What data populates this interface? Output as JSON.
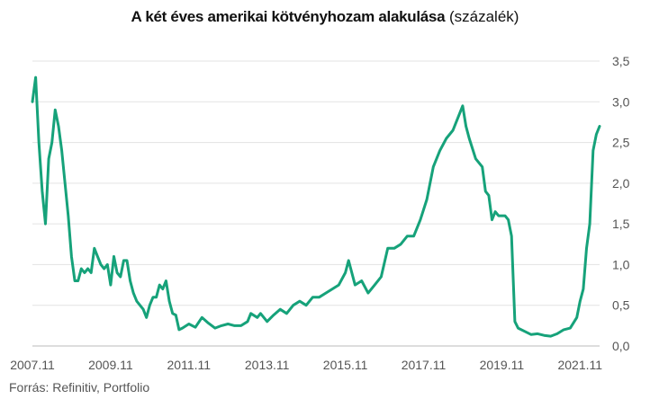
{
  "chart_data": {
    "type": "line",
    "title": "A két éves amerikai kötvényhozam alakulása",
    "unit": "(százalék)",
    "source": "Forrás: Refinitiv, Portfolio",
    "ylim": [
      0,
      3.5
    ],
    "yticks": [
      "0,0",
      "0,5",
      "1,0",
      "1,5",
      "2,0",
      "2,5",
      "3,0",
      "3,5"
    ],
    "xlim": [
      "2007.11",
      "2022.05"
    ],
    "xticks": [
      "2007.11",
      "2009.11",
      "2011.11",
      "2013.11",
      "2015.11",
      "2017.11",
      "2019.11",
      "2021.11"
    ],
    "grid": "horizontal",
    "line_color": "#16a27a",
    "series": [
      {
        "x": [
          "2007.11",
          "2007.12",
          "2008.01",
          "2008.02",
          "2008.03",
          "2008.04",
          "2008.05",
          "2008.06",
          "2008.07",
          "2008.08",
          "2008.09",
          "2008.10",
          "2008.11",
          "2008.12",
          "2009.01",
          "2009.02",
          "2009.03",
          "2009.04",
          "2009.05",
          "2009.06",
          "2009.07",
          "2009.08",
          "2009.09",
          "2009.10",
          "2009.11",
          "2009.12",
          "2010.01",
          "2010.02",
          "2010.03",
          "2010.04",
          "2010.05",
          "2010.06",
          "2010.07",
          "2010.08",
          "2010.09",
          "2010.10",
          "2010.11",
          "2010.12",
          "2011.01",
          "2011.02",
          "2011.03",
          "2011.04",
          "2011.05",
          "2011.06",
          "2011.07",
          "2011.08",
          "2011.09",
          "2011.11",
          "2012.01",
          "2012.03",
          "2012.05",
          "2012.07",
          "2012.09",
          "2012.11",
          "2013.01",
          "2013.03",
          "2013.05",
          "2013.06",
          "2013.08",
          "2013.09",
          "2013.11",
          "2014.01",
          "2014.03",
          "2014.05",
          "2014.07",
          "2014.09",
          "2014.11",
          "2015.01",
          "2015.03",
          "2015.05",
          "2015.07",
          "2015.09",
          "2015.11",
          "2015.12",
          "2016.02",
          "2016.04",
          "2016.06",
          "2016.08",
          "2016.10",
          "2016.12",
          "2017.02",
          "2017.04",
          "2017.06",
          "2017.08",
          "2017.10",
          "2017.12",
          "2018.02",
          "2018.04",
          "2018.06",
          "2018.08",
          "2018.10",
          "2018.11",
          "2018.12",
          "2019.01",
          "2019.03",
          "2019.05",
          "2019.06",
          "2019.07",
          "2019.08",
          "2019.09",
          "2019.10",
          "2019.12",
          "2020.01",
          "2020.02",
          "2020.03",
          "2020.04",
          "2020.06",
          "2020.08",
          "2020.10",
          "2020.12",
          "2021.02",
          "2021.04",
          "2021.06",
          "2021.08",
          "2021.10",
          "2021.11",
          "2021.12",
          "2022.01",
          "2022.02",
          "2022.03",
          "2022.04",
          "2022.05"
        ],
        "values": [
          3.0,
          3.3,
          2.5,
          1.9,
          1.5,
          2.3,
          2.5,
          2.9,
          2.7,
          2.4,
          2.0,
          1.6,
          1.1,
          0.8,
          0.8,
          0.95,
          0.9,
          0.95,
          0.9,
          1.2,
          1.1,
          1.0,
          0.95,
          1.0,
          0.75,
          1.1,
          0.9,
          0.85,
          1.05,
          1.05,
          0.8,
          0.65,
          0.55,
          0.5,
          0.45,
          0.35,
          0.5,
          0.6,
          0.6,
          0.75,
          0.7,
          0.8,
          0.55,
          0.4,
          0.38,
          0.2,
          0.22,
          0.27,
          0.23,
          0.35,
          0.28,
          0.22,
          0.25,
          0.27,
          0.25,
          0.25,
          0.3,
          0.4,
          0.35,
          0.4,
          0.3,
          0.38,
          0.45,
          0.4,
          0.5,
          0.55,
          0.5,
          0.6,
          0.6,
          0.65,
          0.7,
          0.75,
          0.9,
          1.05,
          0.75,
          0.8,
          0.65,
          0.75,
          0.85,
          1.2,
          1.2,
          1.25,
          1.35,
          1.35,
          1.55,
          1.8,
          2.2,
          2.4,
          2.55,
          2.65,
          2.85,
          2.95,
          2.7,
          2.55,
          2.3,
          2.2,
          1.9,
          1.85,
          1.55,
          1.65,
          1.6,
          1.6,
          1.55,
          1.35,
          0.3,
          0.22,
          0.18,
          0.14,
          0.15,
          0.13,
          0.12,
          0.15,
          0.2,
          0.22,
          0.35,
          0.55,
          0.7,
          1.2,
          1.5,
          2.4,
          2.6,
          2.7
        ]
      }
    ]
  }
}
